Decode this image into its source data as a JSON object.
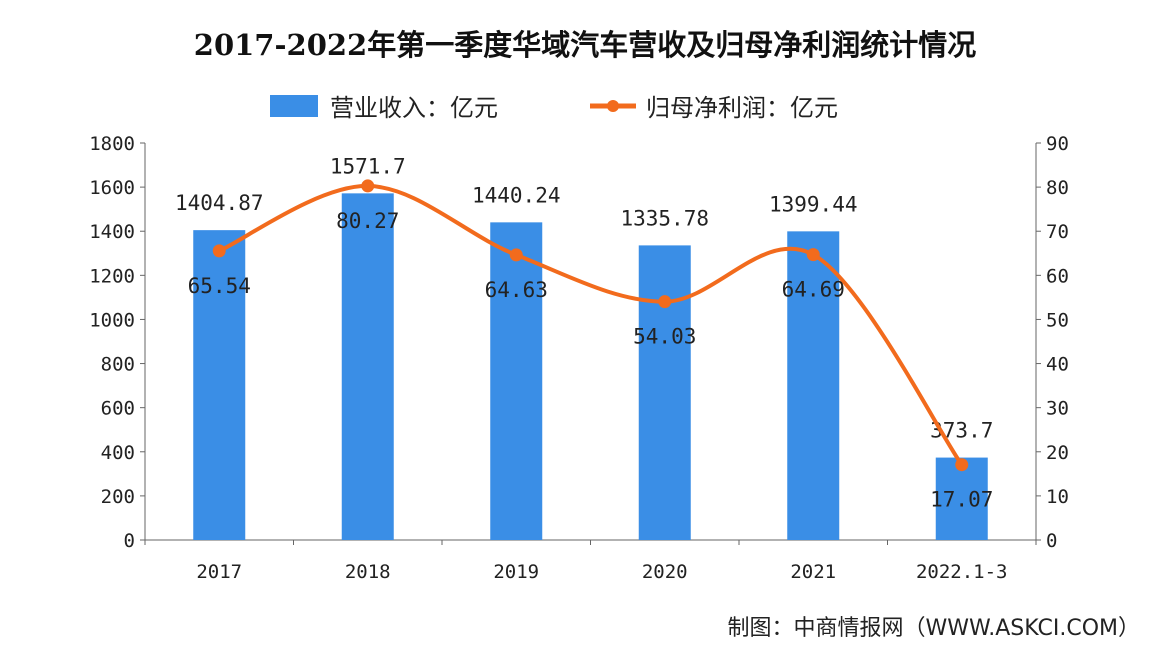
{
  "chart_data": {
    "type": "bar+line",
    "title": "2017-2022年第一季度华域汽车营收及归母净利润统计情况",
    "categories": [
      "2017",
      "2018",
      "2019",
      "2020",
      "2021",
      "2022.1-3"
    ],
    "series": [
      {
        "name": "营业收入：亿元",
        "type": "bar",
        "axis": "left",
        "color": "#3a8ee6",
        "values": [
          1404.87,
          1571.7,
          1440.24,
          1335.78,
          1399.44,
          373.7
        ],
        "labels": [
          "1404.87",
          "1571.7",
          "1440.24",
          "1335.78",
          "1399.44",
          "373.7"
        ]
      },
      {
        "name": "归母净利润：亿元",
        "type": "line",
        "axis": "right",
        "color": "#f26b1d",
        "values": [
          65.54,
          80.27,
          64.63,
          54.03,
          64.69,
          17.07
        ],
        "labels": [
          "65.54",
          "80.27",
          "64.63",
          "54.03",
          "64.69",
          "17.07"
        ]
      }
    ],
    "y_left": {
      "ylim": [
        0,
        1800
      ],
      "ticks": [
        "0",
        "200",
        "400",
        "600",
        "800",
        "1000",
        "1200",
        "1400",
        "1600",
        "1800"
      ]
    },
    "y_right": {
      "ylim": [
        0,
        90
      ],
      "ticks": [
        "0",
        "10",
        "20",
        "30",
        "40",
        "50",
        "60",
        "70",
        "80",
        "90"
      ]
    },
    "grid": false,
    "legend": "top"
  },
  "source": "制图：中商情报网（WWW.ASKCI.COM）"
}
